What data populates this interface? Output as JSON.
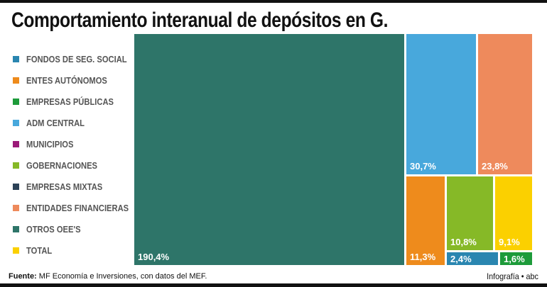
{
  "title": "Comportamiento interanual de depósitos en G.",
  "footer": {
    "source_label": "Fuente:",
    "source_text": "MF Economía e Inversiones, con datos del MEF.",
    "credit": "Infografía • abc"
  },
  "chart_data": {
    "type": "treemap",
    "title": "Comportamiento interanual de depósitos en G.",
    "legend": [
      {
        "name": "FONDOS DE SEG. SOCIAL",
        "color": "#2a86b0"
      },
      {
        "name": "ENTES AUTÓNOMOS",
        "color": "#ee8b1c"
      },
      {
        "name": "EMPRESAS PÚBLICAS",
        "color": "#1d9b3a"
      },
      {
        "name": "ADM CENTRAL",
        "color": "#48a8dc"
      },
      {
        "name": "MUNICIPIOS",
        "color": "#9b1a78"
      },
      {
        "name": "GOBERNACIONES",
        "color": "#86b927"
      },
      {
        "name": "EMPRESAS MIXTAS",
        "color": "#2c4257"
      },
      {
        "name": "ENTIDADES FINANCIERAS",
        "color": "#ee8a5c"
      },
      {
        "name": "OTROS OEE'S",
        "color": "#2e7569"
      },
      {
        "name": "TOTAL",
        "color": "#fbd000"
      }
    ],
    "values": [
      {
        "name": "OTROS OEE'S",
        "value": 190.4,
        "label": "190,4%"
      },
      {
        "name": "ADM CENTRAL",
        "value": 30.7,
        "label": "30,7%"
      },
      {
        "name": "ENTIDADES FINANCIERAS",
        "value": 23.8,
        "label": "23,8%"
      },
      {
        "name": "ENTES AUTÓNOMOS",
        "value": 11.3,
        "label": "11,3%"
      },
      {
        "name": "GOBERNACIONES",
        "value": 10.8,
        "label": "10,8%"
      },
      {
        "name": "TOTAL",
        "value": 9.1,
        "label": "9,1%"
      },
      {
        "name": "FONDOS DE SEG. SOCIAL",
        "value": 2.4,
        "label": "2,4%"
      },
      {
        "name": "EMPRESAS PÚBLICAS",
        "value": 1.6,
        "label": "1,6%"
      }
    ]
  }
}
